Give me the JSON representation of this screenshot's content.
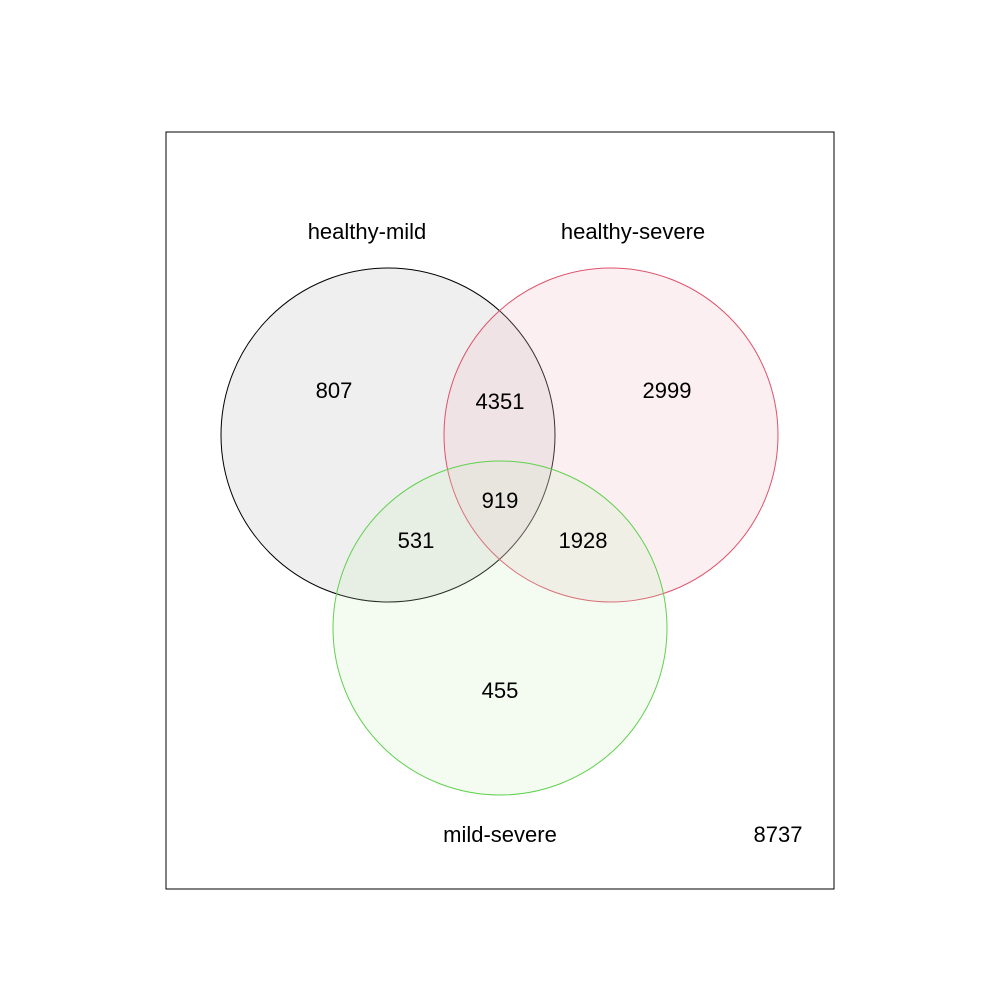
{
  "sets": [
    {
      "name": "healthy-mild",
      "stroke": "#000000",
      "fill": "#bebebe"
    },
    {
      "name": "healthy-severe",
      "stroke": "#df536b",
      "fill": "#f0c0c8"
    },
    {
      "name": "mild-severe",
      "stroke": "#61d04f",
      "fill": "#c8f0c0"
    }
  ],
  "regions": {
    "healthy_mild_only": "807",
    "healthy_severe_only": "2999",
    "mild_severe_only": "455",
    "healthy_mild_and_healthy_severe": "4351",
    "healthy_mild_and_mild_severe": "531",
    "healthy_severe_and_mild_severe": "1928",
    "all_three": "919",
    "none": "8737"
  }
}
